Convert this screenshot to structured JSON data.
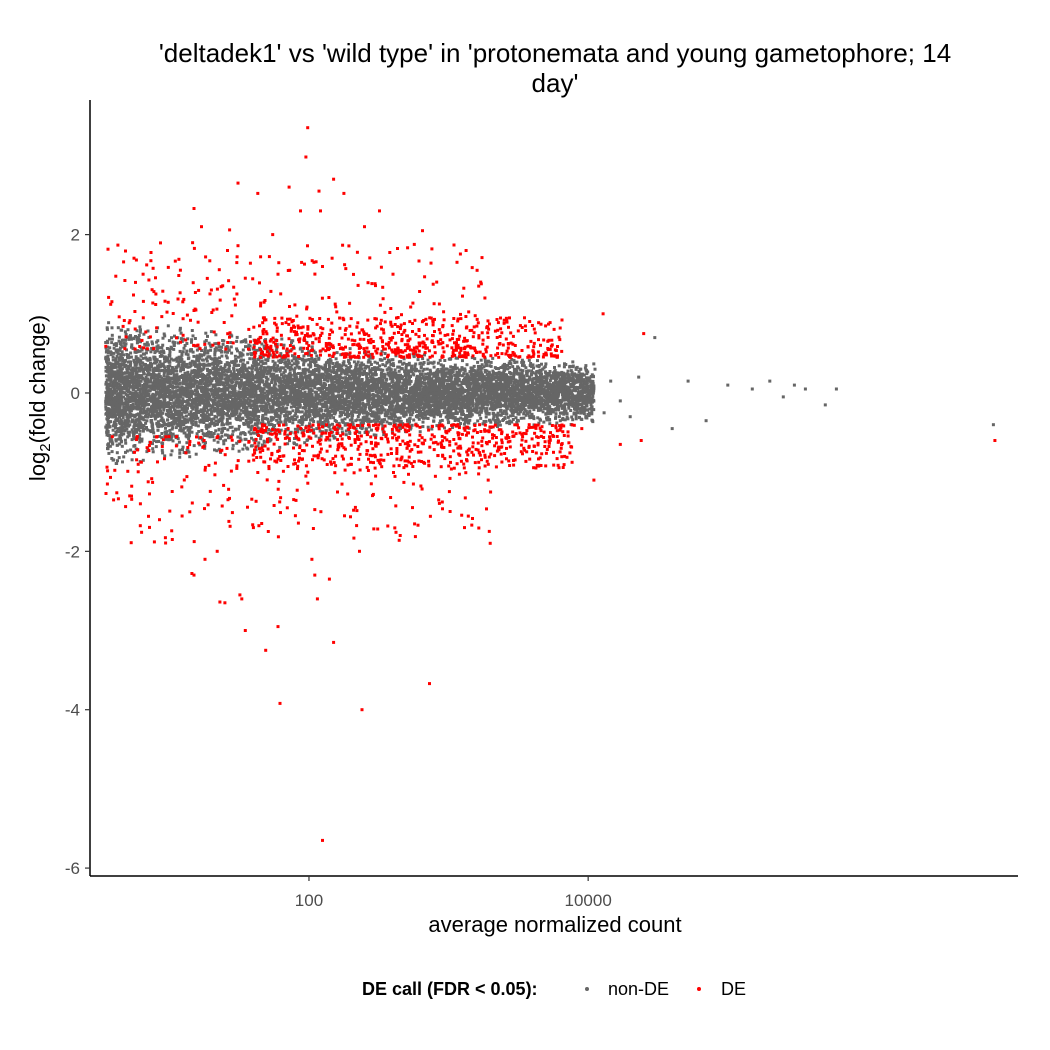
{
  "chart_data": {
    "type": "scatter",
    "title_line1": "'deltadek1' vs 'wild type' in 'protonemata and young gametophore; 14",
    "title_line2": "day'",
    "xlabel": "average normalized count",
    "ylabel_main": "log",
    "ylabel_sub": "2",
    "ylabel_rest": "(fold change)",
    "x_scale": "log10",
    "xlim": [
      2.7,
      12000000
    ],
    "ylim": [
      -6.1,
      3.7
    ],
    "x_ticks": [
      {
        "value": 100,
        "label": "100"
      },
      {
        "value": 10000,
        "label": "10000"
      }
    ],
    "y_ticks": [
      {
        "value": 2,
        "label": "2"
      },
      {
        "value": 0,
        "label": "0"
      },
      {
        "value": -2,
        "label": "-2"
      },
      {
        "value": -4,
        "label": "-4"
      },
      {
        "value": -6,
        "label": "-6"
      }
    ],
    "grid": false,
    "legend": {
      "position": "bottom",
      "title": "DE call (FDR < 0.05):",
      "entries": [
        {
          "label": "non-DE",
          "color": "#666666"
        },
        {
          "label": "DE",
          "color": "#ff0000"
        }
      ]
    },
    "series": [
      {
        "name": "non-DE",
        "color": "#666666",
        "density_note": "dense cloud of ~20000 genes, spread shrinking with count",
        "envelope": [
          {
            "x": 3.5,
            "spread": 0.9
          },
          {
            "x": 10,
            "spread": 0.85
          },
          {
            "x": 40,
            "spread": 0.75
          },
          {
            "x": 150,
            "spread": 0.6
          },
          {
            "x": 600,
            "spread": 0.5
          },
          {
            "x": 2000,
            "spread": 0.45
          },
          {
            "x": 8000,
            "spread": 0.4
          },
          {
            "x": 40000,
            "spread": 0.35
          },
          {
            "x": 200000,
            "spread": 0.3
          },
          {
            "x": 1000000,
            "spread": 0.3
          }
        ],
        "points": [
          {
            "x": 11200,
            "y": 0.3
          },
          {
            "x": 13000,
            "y": -0.25
          },
          {
            "x": 14500,
            "y": 0.15
          },
          {
            "x": 17000,
            "y": -0.1
          },
          {
            "x": 20000,
            "y": -0.3
          },
          {
            "x": 23000,
            "y": 0.2
          },
          {
            "x": 30000,
            "y": 0.7
          },
          {
            "x": 40000,
            "y": -0.45
          },
          {
            "x": 52000,
            "y": 0.15
          },
          {
            "x": 70000,
            "y": -0.35
          },
          {
            "x": 100000,
            "y": 0.1
          },
          {
            "x": 150000,
            "y": 0.05
          },
          {
            "x": 200000,
            "y": 0.15
          },
          {
            "x": 250000,
            "y": -0.05
          },
          {
            "x": 300000,
            "y": 0.1
          },
          {
            "x": 360000,
            "y": 0.05
          },
          {
            "x": 500000,
            "y": -0.15
          },
          {
            "x": 600000,
            "y": 0.05
          },
          {
            "x": 8000000,
            "y": -0.4
          }
        ]
      },
      {
        "name": "DE",
        "color": "#ff0000",
        "points": [
          {
            "x": 98,
            "y": 3.35
          },
          {
            "x": 95,
            "y": 2.98
          },
          {
            "x": 31,
            "y": 2.65
          },
          {
            "x": 150,
            "y": 2.7
          },
          {
            "x": 72,
            "y": 2.6
          },
          {
            "x": 43,
            "y": 2.52
          },
          {
            "x": 118,
            "y": 2.55
          },
          {
            "x": 178,
            "y": 2.52
          },
          {
            "x": 15,
            "y": 2.33
          },
          {
            "x": 87,
            "y": 2.3
          },
          {
            "x": 121,
            "y": 2.3
          },
          {
            "x": 320,
            "y": 2.3
          },
          {
            "x": 17,
            "y": 2.1
          },
          {
            "x": 27,
            "y": 2.06
          },
          {
            "x": 55,
            "y": 2.0
          },
          {
            "x": 250,
            "y": 2.1
          },
          {
            "x": 650,
            "y": 2.05
          },
          {
            "x": 760,
            "y": 1.82
          },
          {
            "x": 1150,
            "y": 1.65
          },
          {
            "x": 1700,
            "y": 1.4
          },
          {
            "x": 5.8,
            "y": 1.68
          },
          {
            "x": 4.8,
            "y": 1.42
          },
          {
            "x": 8,
            "y": 1.25
          },
          {
            "x": 12,
            "y": 1.55
          },
          {
            "x": 20,
            "y": 1.3
          },
          {
            "x": 35,
            "y": 1.45
          },
          {
            "x": 45,
            "y": 1.72
          },
          {
            "x": 60,
            "y": 1.5
          },
          {
            "x": 180,
            "y": 1.62
          },
          {
            "x": 400,
            "y": 1.5
          },
          {
            "x": 3.8,
            "y": 1.12
          },
          {
            "x": 6.5,
            "y": 0.95
          },
          {
            "x": 6300,
            "y": 0.82
          },
          {
            "x": 12800,
            "y": 1.0
          },
          {
            "x": 25000,
            "y": 0.75
          },
          {
            "x": 3500,
            "y": 0.95
          },
          {
            "x": 2500,
            "y": 0.88
          },
          {
            "x": 6000,
            "y": -0.55
          },
          {
            "x": 9000,
            "y": -0.45
          },
          {
            "x": 11000,
            "y": -1.1
          },
          {
            "x": 17000,
            "y": -0.65
          },
          {
            "x": 24000,
            "y": -0.6
          },
          {
            "x": 8200000,
            "y": -0.6
          },
          {
            "x": 3.6,
            "y": -1.15
          },
          {
            "x": 5.2,
            "y": -1.3
          },
          {
            "x": 6.2,
            "y": -1.4
          },
          {
            "x": 8.5,
            "y": -1.6
          },
          {
            "x": 10.5,
            "y": -1.85
          },
          {
            "x": 14,
            "y": -1.5
          },
          {
            "x": 18,
            "y": -2.1
          },
          {
            "x": 14.5,
            "y": -2.28
          },
          {
            "x": 15,
            "y": -2.3
          },
          {
            "x": 22,
            "y": -2.0
          },
          {
            "x": 25,
            "y": -2.65
          },
          {
            "x": 23,
            "y": -2.64
          },
          {
            "x": 33,
            "y": -2.6
          },
          {
            "x": 32,
            "y": -2.55
          },
          {
            "x": 35,
            "y": -3.0
          },
          {
            "x": 49,
            "y": -3.25
          },
          {
            "x": 60,
            "y": -2.95
          },
          {
            "x": 62,
            "y": -3.92
          },
          {
            "x": 80,
            "y": -1.55
          },
          {
            "x": 105,
            "y": -2.1
          },
          {
            "x": 110,
            "y": -2.3
          },
          {
            "x": 115,
            "y": -2.6
          },
          {
            "x": 140,
            "y": -2.35
          },
          {
            "x": 150,
            "y": -3.15
          },
          {
            "x": 230,
            "y": -2.0
          },
          {
            "x": 240,
            "y": -4.0
          },
          {
            "x": 420,
            "y": -1.76
          },
          {
            "x": 450,
            "y": -1.8
          },
          {
            "x": 730,
            "y": -3.67
          },
          {
            "x": 850,
            "y": -1.35
          },
          {
            "x": 1300,
            "y": -1.7
          },
          {
            "x": 2000,
            "y": -1.25
          },
          {
            "x": 125,
            "y": -5.65
          },
          {
            "x": 40,
            "y": -1.7
          },
          {
            "x": 70,
            "y": -1.45
          },
          {
            "x": 95,
            "y": -1.05
          },
          {
            "x": 160,
            "y": -1.25
          },
          {
            "x": 300,
            "y": -1.05
          },
          {
            "x": 560,
            "y": -1.15
          },
          {
            "x": 1100,
            "y": -0.95
          },
          {
            "x": 2600,
            "y": -0.7
          }
        ],
        "bands": [
          {
            "x_from": 3.5,
            "x_to": 2000,
            "y_from": 0.55,
            "y_to": 1.9,
            "count": 260
          },
          {
            "x_from": 3.5,
            "x_to": 2000,
            "y_from": -1.9,
            "y_to": -0.55,
            "count": 260
          },
          {
            "x_from": 40,
            "x_to": 6500,
            "y_from": 0.45,
            "y_to": 0.95,
            "count": 520
          },
          {
            "x_from": 40,
            "x_to": 8000,
            "y_from": -0.95,
            "y_to": -0.4,
            "count": 520
          }
        ]
      }
    ]
  }
}
